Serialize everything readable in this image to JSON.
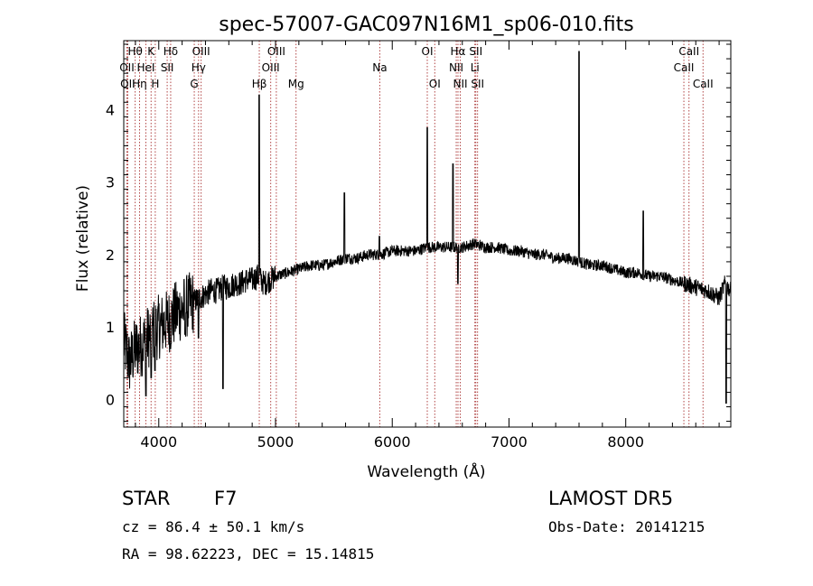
{
  "chart_data": {
    "type": "line",
    "title": "spec-57007-GAC097N16M1_sp06-010.fits",
    "xlabel": "Wavelength (Å)",
    "ylabel": "Flux (relative)",
    "xlim": [
      3700,
      8900
    ],
    "ylim": [
      -0.38,
      4.95
    ],
    "xticks": [
      4000,
      5000,
      6000,
      7000,
      8000
    ],
    "yticks": [
      0,
      1,
      2,
      3,
      4
    ],
    "xtick_labels": [
      "4000",
      "5000",
      "6000",
      "7000",
      "8000"
    ],
    "ytick_labels": [
      "0",
      "1",
      "2",
      "3",
      "4"
    ],
    "grid": false,
    "line_color": "#000000",
    "marker_color": "#a83030",
    "spectrum": {
      "x": [
        3700,
        3750,
        3800,
        3850,
        3900,
        3950,
        4000,
        4050,
        4100,
        4150,
        4200,
        4250,
        4300,
        4350,
        4400,
        4450,
        4500,
        4550,
        4600,
        4650,
        4700,
        4750,
        4800,
        4850,
        4900,
        4950,
        5000,
        5100,
        5200,
        5300,
        5400,
        5500,
        5600,
        5700,
        5800,
        5900,
        6000,
        6100,
        6200,
        6300,
        6400,
        6500,
        6600,
        6700,
        6800,
        6900,
        7000,
        7100,
        7200,
        7300,
        7400,
        7500,
        7600,
        7700,
        7800,
        7900,
        8000,
        8100,
        8200,
        8300,
        8400,
        8500,
        8600,
        8700,
        8750,
        8800,
        8850,
        8900
      ],
      "y": [
        0.8,
        0.5,
        0.7,
        0.75,
        0.85,
        0.95,
        1.0,
        1.05,
        1.1,
        1.2,
        1.25,
        1.3,
        1.35,
        1.4,
        1.45,
        1.5,
        1.5,
        1.55,
        1.55,
        1.6,
        1.6,
        1.65,
        1.65,
        1.7,
        1.6,
        1.65,
        1.7,
        1.75,
        1.8,
        1.85,
        1.85,
        1.9,
        1.95,
        1.95,
        2.0,
        2.0,
        2.05,
        2.05,
        2.05,
        2.1,
        2.1,
        2.1,
        2.1,
        2.15,
        2.1,
        2.1,
        2.05,
        2.05,
        2.0,
        2.0,
        1.95,
        1.95,
        1.9,
        1.85,
        1.85,
        1.8,
        1.75,
        1.75,
        1.7,
        1.7,
        1.65,
        1.6,
        1.55,
        1.5,
        1.45,
        1.4,
        1.6,
        1.5
      ],
      "features": [
        {
          "x": 3890,
          "y": 0.05
        },
        {
          "x": 3935,
          "y": 0.3
        },
        {
          "x": 3968,
          "y": 0.4
        },
        {
          "x": 4101,
          "y": 0.7
        },
        {
          "x": 4226,
          "y": 0.9
        },
        {
          "x": 4340,
          "y": 0.85
        },
        {
          "x": 4550,
          "y": 0.15
        },
        {
          "x": 4861,
          "y": 4.2
        },
        {
          "x": 5590,
          "y": 2.85
        },
        {
          "x": 5890,
          "y": 2.25
        },
        {
          "x": 6300,
          "y": 3.75
        },
        {
          "x": 6520,
          "y": 3.25
        },
        {
          "x": 6563,
          "y": 1.6
        },
        {
          "x": 7600,
          "y": 4.8
        },
        {
          "x": 8150,
          "y": 2.6
        },
        {
          "x": 8860,
          "y": -0.05
        }
      ]
    },
    "lines": [
      {
        "x": 3727,
        "label": "OII",
        "row": 2
      },
      {
        "x": 3734,
        "label": "OII",
        "row": 3
      },
      {
        "x": 3798,
        "label": "Hθ",
        "row": 1
      },
      {
        "x": 3835,
        "label": "Hη",
        "row": 3
      },
      {
        "x": 3889,
        "label": "HeI",
        "row": 2
      },
      {
        "x": 3934,
        "label": "K",
        "row": 1
      },
      {
        "x": 3970,
        "label": "H",
        "row": 3
      },
      {
        "x": 4072,
        "label": "SII",
        "row": 2
      },
      {
        "x": 4102,
        "label": "Hδ",
        "row": 1
      },
      {
        "x": 4304,
        "label": "G",
        "row": 3
      },
      {
        "x": 4341,
        "label": "Hγ",
        "row": 2
      },
      {
        "x": 4363,
        "label": "OIII",
        "row": 1
      },
      {
        "x": 4861,
        "label": "Hβ",
        "row": 3
      },
      {
        "x": 4959,
        "label": "OIII",
        "row": 2
      },
      {
        "x": 5007,
        "label": "OIII",
        "row": 1
      },
      {
        "x": 5176,
        "label": "Mg",
        "row": 3
      },
      {
        "x": 5893,
        "label": "Na",
        "row": 2
      },
      {
        "x": 6300,
        "label": "OI",
        "row": 1
      },
      {
        "x": 6364,
        "label": "OI",
        "row": 3
      },
      {
        "x": 6548,
        "label": "NII",
        "row": 2
      },
      {
        "x": 6563,
        "label": "Hα",
        "row": 1
      },
      {
        "x": 6583,
        "label": "NII",
        "row": 3
      },
      {
        "x": 6708,
        "label": "Li",
        "row": 2
      },
      {
        "x": 6716,
        "label": "SII",
        "row": 1
      },
      {
        "x": 6731,
        "label": "SII",
        "row": 3
      },
      {
        "x": 8498,
        "label": "CaII",
        "row": 2
      },
      {
        "x": 8542,
        "label": "CaII",
        "row": 1
      },
      {
        "x": 8662,
        "label": "CaII",
        "row": 3
      }
    ]
  },
  "info": {
    "class_label": "STAR",
    "subclass": "F7",
    "survey": "LAMOST DR5",
    "redshift": "cz = 86.4 ± 50.1 km/s",
    "obs_date": "Obs-Date: 20141215",
    "coords": "RA =  98.62223, DEC =  15.14815"
  }
}
